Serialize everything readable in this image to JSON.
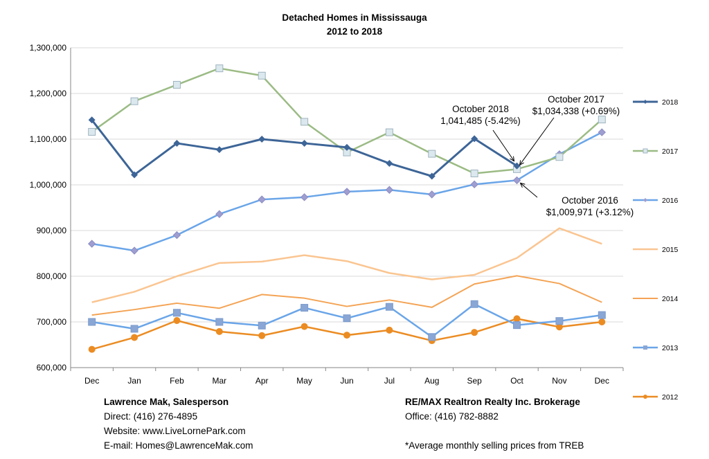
{
  "chart_data": {
    "type": "line",
    "title": "Detached Homes in Mississauga",
    "subtitle": "2012 to 2018",
    "xlabel": "",
    "ylabel": "",
    "categories": [
      "Dec",
      "Jan",
      "Feb",
      "Mar",
      "Apr",
      "May",
      "Jun",
      "Jul",
      "Aug",
      "Sep",
      "Oct",
      "Nov",
      "Dec"
    ],
    "ylim": [
      600000,
      1300000
    ],
    "yticks": [
      600000,
      700000,
      800000,
      900000,
      1000000,
      1100000,
      1200000,
      1300000
    ],
    "ytick_labels": [
      "600,000",
      "700,000",
      "800,000",
      "900,000",
      "1,000,000",
      "1,100,000",
      "1,200,000",
      "1,300,000"
    ],
    "grid": true,
    "legend_position": "right",
    "series": [
      {
        "name": "2018",
        "color": "#3d6597",
        "marker": "diamond",
        "width": 3,
        "values": [
          1142000,
          1022000,
          1091000,
          1077000,
          1100000,
          1091000,
          1082000,
          1047000,
          1019000,
          1101000,
          1041485,
          null,
          null
        ]
      },
      {
        "name": "2017",
        "color": "#9bbb84",
        "marker": "square-open",
        "width": 2.5,
        "values": [
          1116000,
          1183000,
          1219000,
          1255000,
          1239000,
          1138000,
          1071000,
          1115000,
          1068000,
          1025000,
          1034338,
          1061000,
          1143000
        ]
      },
      {
        "name": "2016",
        "color": "#6aa5e8",
        "marker": "diamond-small",
        "width": 2.5,
        "values": [
          871000,
          856000,
          890000,
          936000,
          968000,
          973000,
          985000,
          989000,
          979000,
          1001000,
          1009971,
          1067000,
          1115000
        ]
      },
      {
        "name": "2015",
        "color": "#fac591",
        "marker": "none",
        "width": 2.5,
        "values": [
          743000,
          766000,
          800000,
          829000,
          832000,
          846000,
          833000,
          807000,
          793000,
          803000,
          840000,
          905000,
          871000
        ]
      },
      {
        "name": "2014",
        "color": "#f4a354",
        "marker": "none",
        "width": 2,
        "values": [
          715000,
          727000,
          741000,
          730000,
          760000,
          752000,
          734000,
          748000,
          732000,
          783000,
          801000,
          784000,
          743000
        ]
      },
      {
        "name": "2013",
        "color": "#6aa5e8",
        "marker": "square",
        "width": 2.5,
        "values": [
          700000,
          685000,
          720000,
          700000,
          692000,
          731000,
          708000,
          733000,
          667000,
          739000,
          693000,
          702000,
          715000
        ]
      },
      {
        "name": "2012",
        "color": "#eb8c23",
        "marker": "circle",
        "width": 2.5,
        "values": [
          640000,
          666000,
          703000,
          679000,
          670000,
          690000,
          671000,
          682000,
          659000,
          677000,
          707000,
          689000,
          700000
        ]
      }
    ],
    "annotations": [
      {
        "line1": "October 2018",
        "line2": "1,041,485 (-5.42%)",
        "series": "2018",
        "point_index": 10
      },
      {
        "line1": "October 2017",
        "line2": "$1,034,338 (+0.69%)",
        "series": "2017",
        "point_index": 10
      },
      {
        "line1": "October 2016",
        "line2": "$1,009,971 (+3.12%)",
        "series": "2016",
        "point_index": 10
      }
    ]
  },
  "contact": {
    "name": "Lawrence Mak, Salesperson",
    "direct": "Direct:  (416) 276-4895",
    "website": "Website:  www.LiveLornePark.com",
    "email": "E-mail:  Homes@LawrenceMak.com"
  },
  "brokerage": {
    "name": "RE/MAX Realtron Realty Inc. Brokerage",
    "office": "Office: (416) 782-8882",
    "note": "*Average monthly selling prices from TREB"
  }
}
